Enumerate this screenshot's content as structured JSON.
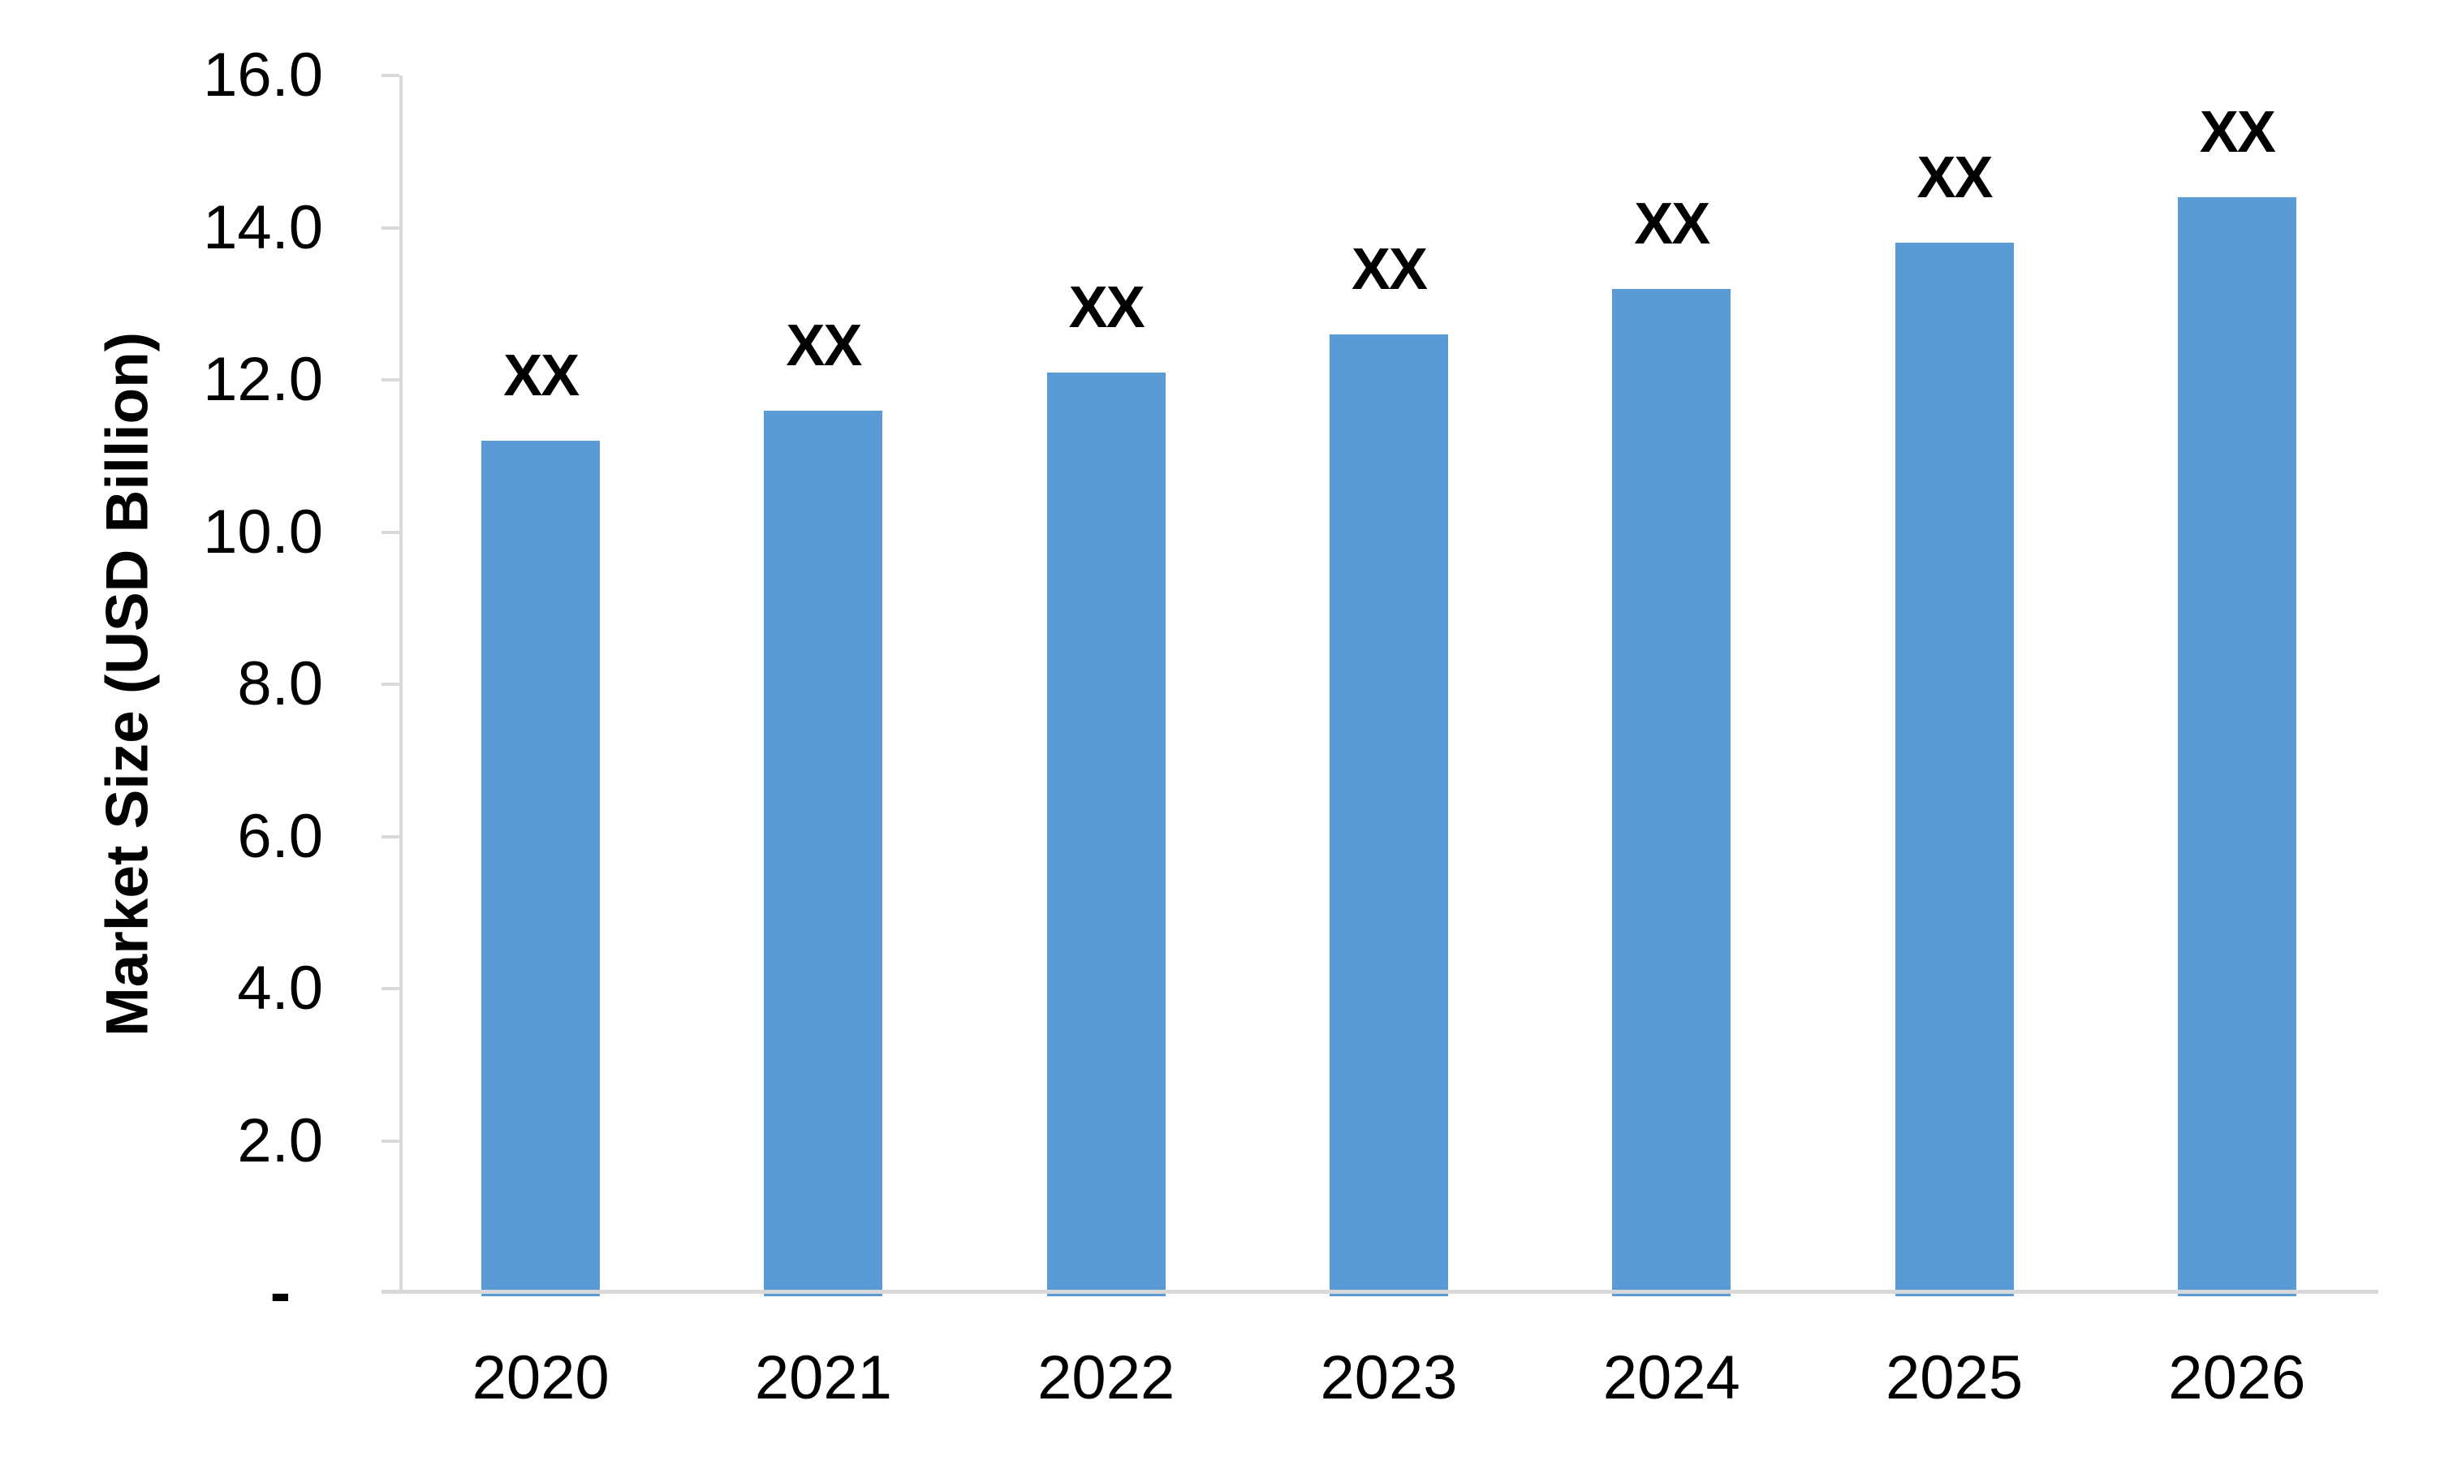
{
  "chart_data": {
    "type": "bar",
    "title": "",
    "xlabel": "",
    "ylabel": "Market Size (USD Billion)",
    "categories": [
      "2020",
      "2021",
      "2022",
      "2023",
      "2024",
      "2025",
      "2026"
    ],
    "values": [
      11.2,
      11.6,
      12.1,
      12.6,
      13.2,
      13.8,
      14.4
    ],
    "bar_value_labels": [
      "XX",
      "XX",
      "XX",
      "XX",
      "XX",
      "XX",
      "XX"
    ],
    "ylim": [
      0,
      16
    ],
    "ytick_interval": 2,
    "ytick_labels": [
      "16.0",
      "14.0",
      "12.0",
      "10.0",
      "8.0",
      "6.0",
      "4.0",
      "2.0",
      "-"
    ],
    "grid": false,
    "legend": "none",
    "colors": {
      "bar": "#5B9BD5",
      "axis": "#D9D9D9",
      "text": "#000000",
      "background": "#FFFFFF"
    }
  }
}
